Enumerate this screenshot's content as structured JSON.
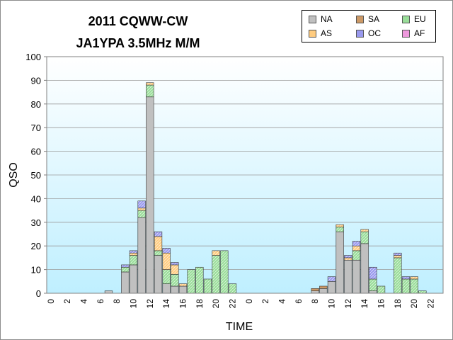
{
  "chart_data": {
    "type": "bar",
    "stacked": true,
    "title": "2011 CQWW-CW",
    "subtitle": "JA1YPA  3.5MHz  M/M",
    "xlabel": "TIME",
    "ylabel": "QSO",
    "ylim": [
      0,
      100
    ],
    "yticks": [
      0,
      10,
      20,
      30,
      40,
      50,
      60,
      70,
      80,
      90,
      100
    ],
    "grid": true,
    "legend_position": "top-right",
    "categories": [
      "0",
      "1",
      "2",
      "3",
      "4",
      "5",
      "6",
      "7",
      "8",
      "9",
      "10",
      "11",
      "12",
      "13",
      "14",
      "15",
      "16",
      "17",
      "18",
      "19",
      "20",
      "21",
      "22",
      "23",
      "0",
      "1",
      "2",
      "3",
      "4",
      "5",
      "6",
      "7",
      "8",
      "9",
      "10",
      "11",
      "12",
      "13",
      "14",
      "15",
      "16",
      "17",
      "18",
      "19",
      "20",
      "21",
      "22",
      "23"
    ],
    "tick_labels": [
      "0",
      "",
      "2",
      "",
      "4",
      "",
      "6",
      "",
      "8",
      "",
      "10",
      "",
      "12",
      "",
      "14",
      "",
      "16",
      "",
      "18",
      "",
      "20",
      "",
      "22",
      "",
      "0",
      "",
      "2",
      "",
      "4",
      "",
      "6",
      "",
      "8",
      "",
      "10",
      "",
      "12",
      "",
      "14",
      "",
      "16",
      "",
      "18",
      "",
      "20",
      "",
      "22",
      ""
    ],
    "series": [
      {
        "name": "NA",
        "color": "#c0c0c0",
        "values": [
          0,
          0,
          0,
          0,
          0,
          0,
          0,
          1,
          0,
          9,
          12,
          32,
          83,
          16,
          4,
          3,
          3,
          0,
          0,
          0,
          0,
          0,
          0,
          0,
          0,
          0,
          0,
          0,
          0,
          0,
          0,
          0,
          1,
          2,
          5,
          26,
          14,
          14,
          21,
          1,
          0,
          0,
          0,
          0,
          0,
          0,
          0,
          0
        ]
      },
      {
        "name": "SA",
        "color": "#cc9966",
        "values": [
          0,
          0,
          0,
          0,
          0,
          0,
          0,
          0,
          0,
          0,
          0,
          0,
          0,
          0,
          0,
          0,
          0,
          0,
          0,
          0,
          0,
          0,
          0,
          0,
          0,
          0,
          0,
          0,
          0,
          0,
          0,
          0,
          1,
          1,
          0,
          0,
          0,
          0,
          0,
          0,
          0,
          0,
          0,
          0,
          0,
          0,
          0,
          0
        ]
      },
      {
        "name": "EU",
        "color": "#99dd99",
        "values": [
          0,
          0,
          0,
          0,
          0,
          0,
          0,
          0,
          0,
          2,
          4,
          3,
          5,
          2,
          6,
          5,
          0,
          10,
          11,
          6,
          16,
          18,
          4,
          0,
          0,
          0,
          0,
          0,
          0,
          0,
          0,
          0,
          0,
          0,
          0,
          2,
          0,
          4,
          5,
          5,
          3,
          0,
          15,
          6,
          6,
          1,
          0,
          0
        ]
      },
      {
        "name": "AS",
        "color": "#ffcc80",
        "values": [
          0,
          0,
          0,
          0,
          0,
          0,
          0,
          0,
          0,
          0,
          1,
          1,
          1,
          6,
          7,
          4,
          1,
          0,
          0,
          0,
          2,
          0,
          0,
          0,
          0,
          0,
          0,
          0,
          0,
          0,
          0,
          0,
          0,
          0,
          0,
          1,
          1,
          2,
          1,
          0,
          0,
          0,
          1,
          0,
          1,
          0,
          0,
          0
        ]
      },
      {
        "name": "OC",
        "color": "#9999ee",
        "values": [
          0,
          0,
          0,
          0,
          0,
          0,
          0,
          0,
          0,
          1,
          1,
          3,
          0,
          2,
          2,
          1,
          0,
          0,
          0,
          0,
          0,
          0,
          0,
          0,
          0,
          0,
          0,
          0,
          0,
          0,
          0,
          0,
          0,
          0,
          2,
          0,
          1,
          2,
          0,
          5,
          0,
          0,
          1,
          1,
          0,
          0,
          0,
          0
        ]
      },
      {
        "name": "AF",
        "color": "#ee99dd",
        "values": [
          0,
          0,
          0,
          0,
          0,
          0,
          0,
          0,
          0,
          0,
          0,
          0,
          0,
          0,
          0,
          0,
          0,
          0,
          0,
          0,
          0,
          0,
          0,
          0,
          0,
          0,
          0,
          0,
          0,
          0,
          0,
          0,
          0,
          0,
          0,
          0,
          0,
          0,
          0,
          0,
          0,
          0,
          0,
          0,
          0,
          0,
          0,
          0
        ]
      }
    ],
    "colors": {
      "plot_bg_top": "#ffffff",
      "plot_bg_bottom": "#bfefff",
      "bar_outline": "#333333"
    }
  }
}
